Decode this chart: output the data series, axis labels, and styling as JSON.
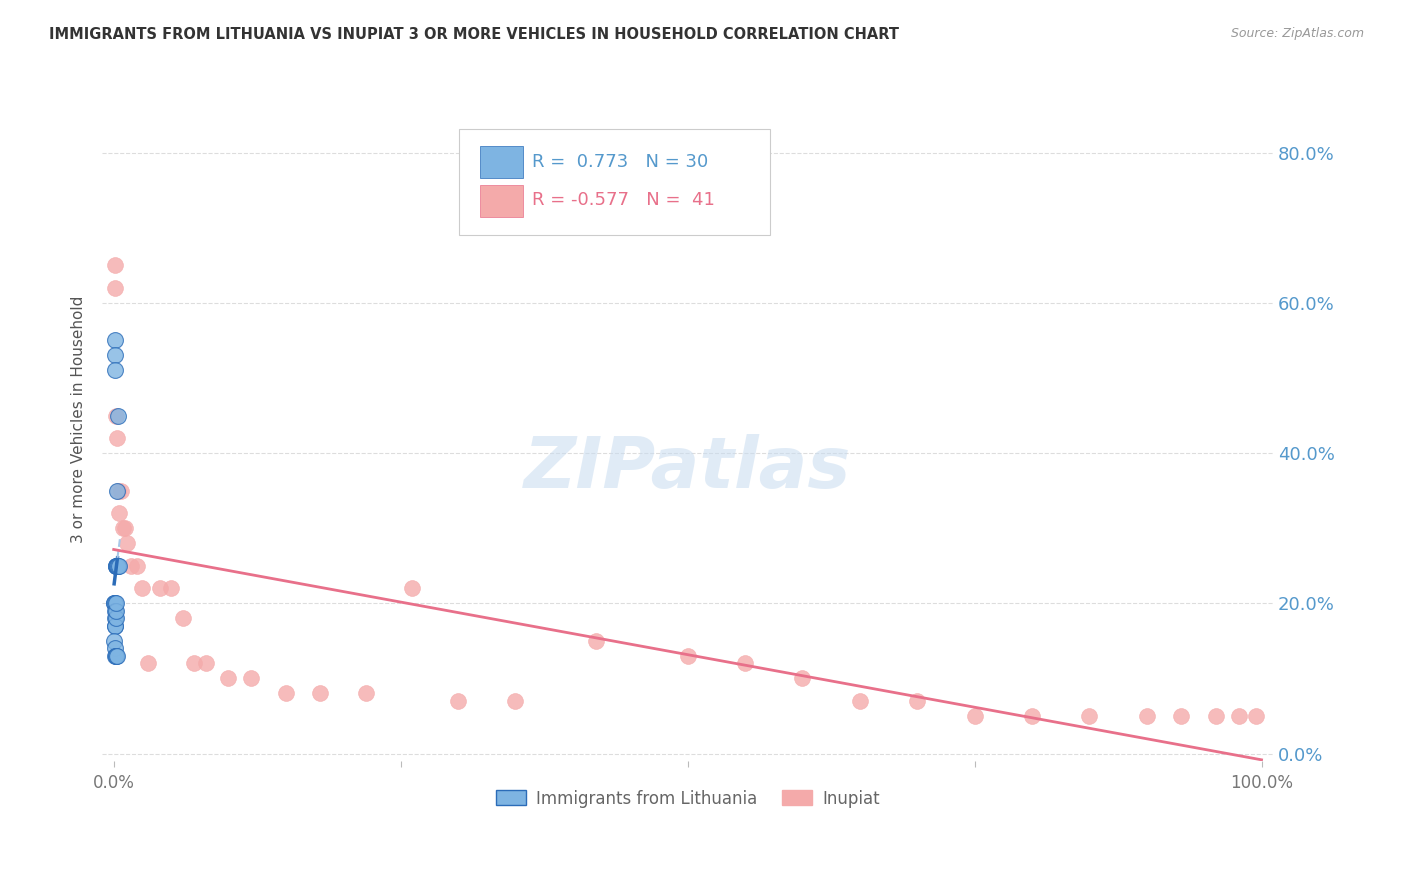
{
  "title": "IMMIGRANTS FROM LITHUANIA VS INUPIAT 3 OR MORE VEHICLES IN HOUSEHOLD CORRELATION CHART",
  "source": "Source: ZipAtlas.com",
  "ylabel": "3 or more Vehicles in Household",
  "watermark_text": "ZIPatlas",
  "blue_R": 0.773,
  "blue_N": 30,
  "pink_R": -0.577,
  "pink_N": 41,
  "blue_label": "Immigrants from Lithuania",
  "pink_label": "Inupiat",
  "blue_color": "#7EB4E2",
  "pink_color": "#F4AAAA",
  "blue_line_color": "#2B6CB8",
  "pink_line_color": "#E8708A",
  "blue_dashed_color": "#A8C8E8",
  "blue_x": [
    0.08,
    0.12,
    0.15,
    0.18,
    0.2,
    0.22,
    0.25,
    0.28,
    0.3,
    0.33,
    0.05,
    0.07,
    0.09,
    0.1,
    0.11,
    0.13,
    0.14,
    0.16,
    0.17,
    0.19,
    0.06,
    0.08,
    0.1,
    0.21,
    0.23,
    0.26,
    0.31,
    0.35,
    0.4,
    0.5
  ],
  "blue_y": [
    55.0,
    53.0,
    51.0,
    25.0,
    25.0,
    25.0,
    25.0,
    25.0,
    35.0,
    25.0,
    20.0,
    20.0,
    20.0,
    19.0,
    18.0,
    17.0,
    17.0,
    18.0,
    19.0,
    20.0,
    15.0,
    14.0,
    13.0,
    13.0,
    13.0,
    13.0,
    25.0,
    45.0,
    25.0,
    25.0
  ],
  "pink_x": [
    0.1,
    0.15,
    0.2,
    0.3,
    0.4,
    0.5,
    0.6,
    0.8,
    1.0,
    1.2,
    1.5,
    2.0,
    2.5,
    3.0,
    4.0,
    5.0,
    6.0,
    7.0,
    8.0,
    10.0,
    12.0,
    15.0,
    18.0,
    22.0,
    26.0,
    30.0,
    35.0,
    42.0,
    50.0,
    55.0,
    60.0,
    65.0,
    70.0,
    75.0,
    80.0,
    85.0,
    90.0,
    93.0,
    96.0,
    98.0,
    99.5
  ],
  "pink_y": [
    65.0,
    62.0,
    45.0,
    42.0,
    35.0,
    32.0,
    35.0,
    30.0,
    30.0,
    28.0,
    25.0,
    25.0,
    22.0,
    12.0,
    22.0,
    22.0,
    18.0,
    12.0,
    12.0,
    10.0,
    10.0,
    8.0,
    8.0,
    8.0,
    22.0,
    7.0,
    7.0,
    15.0,
    13.0,
    12.0,
    10.0,
    7.0,
    7.0,
    5.0,
    5.0,
    5.0,
    5.0,
    5.0,
    5.0,
    5.0,
    5.0
  ],
  "xlim_pct": [
    0,
    100
  ],
  "ylim_pct": [
    0,
    90
  ],
  "yticks_pct": [
    0,
    20,
    40,
    60,
    80
  ],
  "xticks_show": [
    0,
    100
  ],
  "grid_color": "#DDDDDD",
  "bg_color": "#FFFFFF"
}
